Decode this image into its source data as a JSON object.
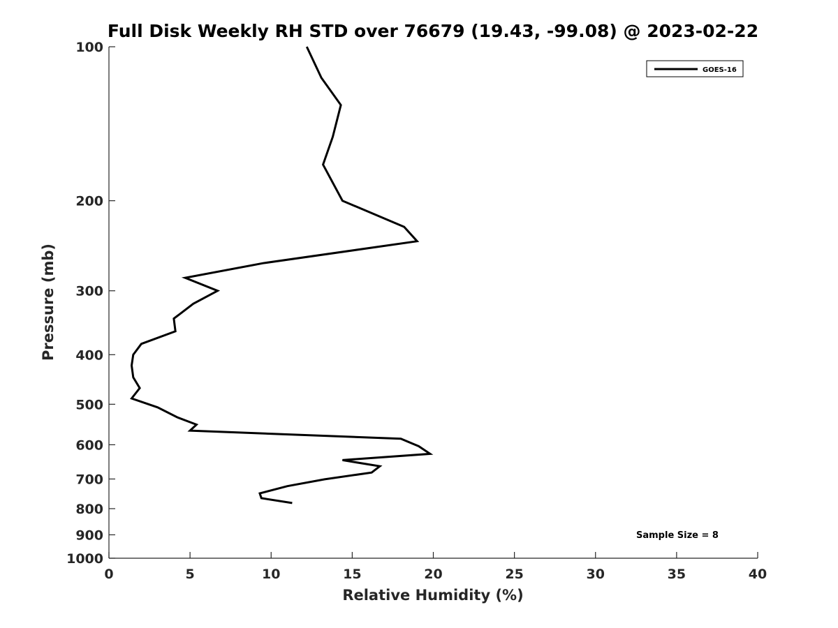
{
  "chart_data": {
    "type": "line",
    "title": "Full Disk Weekly RH STD over 76679 (19.43, -99.08) @ 2023-02-22",
    "xlabel": "Relative Humidity (%)",
    "ylabel": "Pressure (mb)",
    "xlim": [
      0,
      40
    ],
    "ylim": [
      100,
      1000
    ],
    "y_scale": "log",
    "y_reversed": true,
    "grid": false,
    "legend_placement": "top-right",
    "x_ticks": [
      "0",
      "5",
      "10",
      "15",
      "20",
      "25",
      "30",
      "35",
      "40"
    ],
    "y_ticks": [
      "100",
      "200",
      "300",
      "400",
      "500",
      "600",
      "700",
      "800",
      "900",
      "1000"
    ],
    "series": [
      {
        "name": "GOES-16",
        "color": "#000000",
        "x": [
          12.2,
          13.1,
          14.3,
          13.8,
          13.2,
          14.4,
          18.2,
          19.0,
          9.5,
          4.7,
          6.7,
          5.2,
          4.0,
          4.1,
          2.0,
          1.5,
          1.4,
          1.5,
          1.9,
          1.4,
          3.0,
          4.2,
          5.4,
          5.0,
          18.0,
          19.1,
          19.8,
          14.4,
          16.7,
          16.2,
          13.3,
          11.0,
          9.3,
          9.4,
          11.3
        ],
        "y": [
          100,
          115,
          130,
          150,
          170,
          200,
          225,
          240,
          265,
          283,
          300,
          318,
          340,
          360,
          381,
          400,
          420,
          443,
          465,
          487,
          507,
          530,
          548,
          563,
          584,
          604,
          625,
          643,
          661,
          680,
          701,
          723,
          747,
          763,
          780
        ]
      }
    ],
    "annotations": [
      "Sample Size = 8"
    ]
  }
}
